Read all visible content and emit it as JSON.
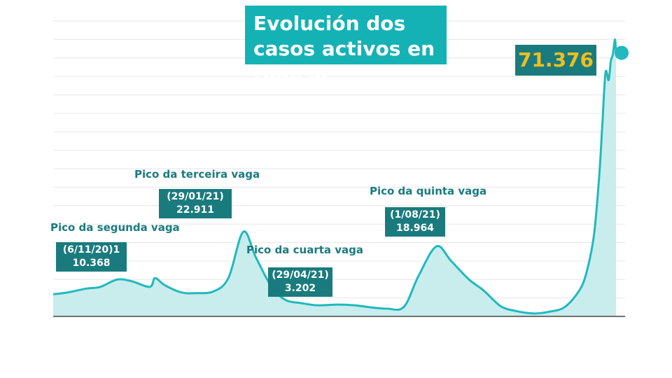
{
  "title": "Evolución dos casos activos en Galicia",
  "current_value": "71.376",
  "colors": {
    "line": "#21b9bd",
    "area": "#c9eced",
    "box": "#1a7b7e",
    "title_bg": "#15b2b5",
    "current_text": "#f1be1d",
    "grid": "#e6e6e6"
  },
  "peaks": [
    {
      "label": "Pico da segunda vaga",
      "date": "(6/11/20)1",
      "value": "10.368"
    },
    {
      "label": "Pico da terceira vaga",
      "date": "(29/01/21)",
      "value": "22.911"
    },
    {
      "label": "Pico da cuarta vaga",
      "date": "(29/04/21)",
      "value": "3.202"
    },
    {
      "label": "Pico da quinta vaga",
      "date": "(1/08/21)",
      "value": "18.964"
    }
  ],
  "chart_data": {
    "type": "area",
    "title": "Evolución dos casos activos en Galicia",
    "xlabel": "",
    "ylabel": "",
    "ylim": [
      0,
      80000
    ],
    "grid": true,
    "x": [
      "2020-08-01",
      "2020-08-15",
      "2020-09-01",
      "2020-09-15",
      "2020-10-01",
      "2020-10-15",
      "2020-11-01",
      "2020-11-06",
      "2020-11-15",
      "2020-12-01",
      "2020-12-15",
      "2021-01-01",
      "2021-01-15",
      "2021-01-29",
      "2021-02-10",
      "2021-02-25",
      "2021-03-10",
      "2021-03-25",
      "2021-04-10",
      "2021-04-29",
      "2021-05-15",
      "2021-06-01",
      "2021-06-15",
      "2021-07-01",
      "2021-07-15",
      "2021-08-01",
      "2021-08-15",
      "2021-09-01",
      "2021-09-15",
      "2021-10-01",
      "2021-10-15",
      "2021-11-01",
      "2021-11-15",
      "2021-12-01",
      "2021-12-15",
      "2021-12-22",
      "2021-12-29",
      "2022-01-03",
      "2022-01-06",
      "2022-01-09",
      "2022-01-12",
      "2022-01-14",
      "2022-01-16",
      "2022-01-18",
      "2022-01-19"
    ],
    "y": [
      6000,
      6500,
      7500,
      8000,
      10000,
      9500,
      8000,
      10368,
      8500,
      6500,
      6300,
      6800,
      10500,
      22911,
      16000,
      8000,
      4500,
      3600,
      3000,
      3202,
      3000,
      2400,
      2100,
      2600,
      11000,
      18964,
      15000,
      10000,
      7000,
      2800,
      1500,
      800,
      1200,
      2500,
      7000,
      12000,
      22000,
      38000,
      52000,
      66000,
      64000,
      69000,
      71000,
      75000,
      71376
    ],
    "series": [
      {
        "values_ref": "y"
      }
    ]
  }
}
